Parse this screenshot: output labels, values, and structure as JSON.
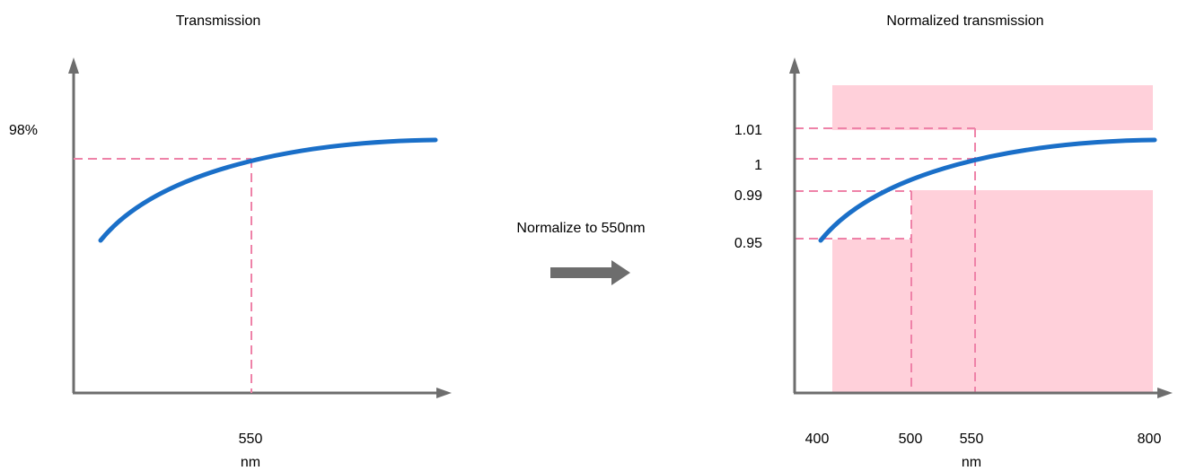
{
  "left_panel": {
    "title": "Transmission",
    "y_label": "98%",
    "x_tick": "550",
    "x_unit": "nm"
  },
  "middle": {
    "caption": "Normalize to 550nm"
  },
  "right_panel": {
    "title": "Normalized transmission",
    "y_ticks": [
      "1.01",
      "1",
      "0.99",
      "0.95"
    ],
    "x_ticks": [
      "400",
      "500",
      "550",
      "800"
    ],
    "x_unit": "nm"
  },
  "colors": {
    "axis": "#6d6d6d",
    "curve": "#1a6fc8",
    "guide": "#ee82a8",
    "band": "#ffd0da",
    "arrow": "#6d6d6d"
  }
}
